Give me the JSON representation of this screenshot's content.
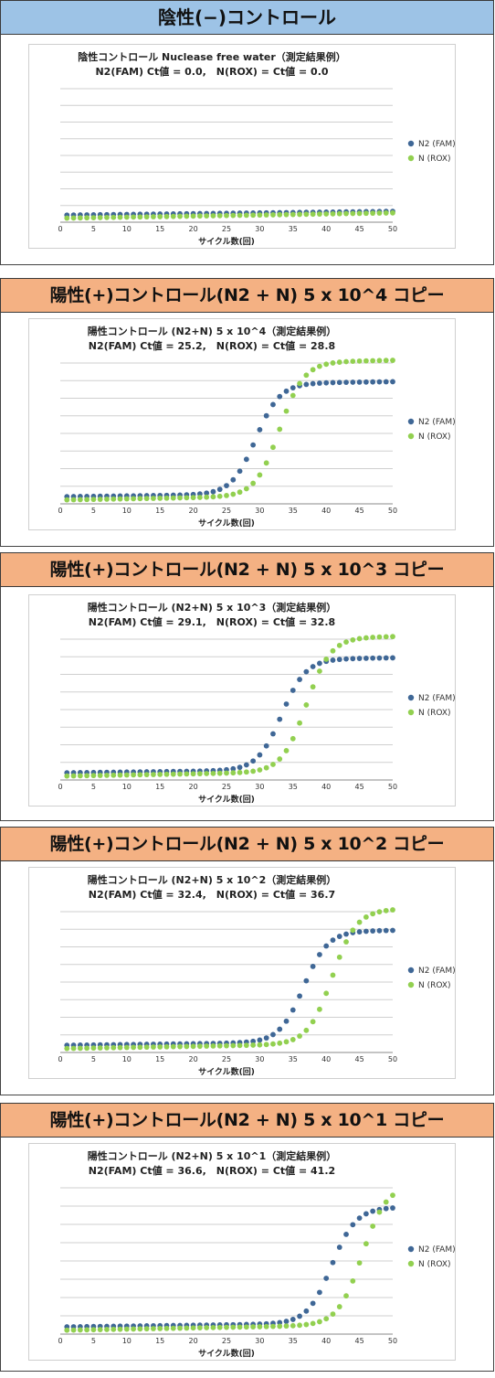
{
  "colors": {
    "fam": "#3f6796",
    "rox": "#92d050",
    "grid": "#cfcfcf",
    "neg_header": "#9dc3e6",
    "pos_header": "#f4b183"
  },
  "panels": [
    {
      "header": "陰性(−)コントロール",
      "title1": "陰性コントロール Nuclease free water（測定結果例）",
      "title2": "N2(FAM) Ct値 = 0.0,　N(ROX) = Ct値 = 0.0"
    },
    {
      "header": "陽性(+)コントロール(N2 + N) 5 x 10^4 コピー",
      "title1": "陽性コントロール (N2+N)  5 x 10^4（測定結果例）",
      "title2": "N2(FAM) Ct値 = 25.2,　N(ROX) = Ct値 = 28.8"
    },
    {
      "header": "陽性(+)コントロール(N2 + N) 5 x 10^3 コピー",
      "title1": "陽性コントロール (N2+N)  5 x 10^3（測定結果例）",
      "title2": "N2(FAM) Ct値 = 29.1,　N(ROX) = Ct値 = 32.8"
    },
    {
      "header": "陽性(+)コントロール(N2 + N) 5 x 10^2 コピー",
      "title1": "陽性コントロール (N2+N)  5 x 10^2（測定結果例）",
      "title2": "N2(FAM) Ct値 = 32.4,　N(ROX) = Ct値 = 36.7"
    },
    {
      "header": "陽性(+)コントロール(N2 + N) 5 x 10^1 コピー",
      "title1": "陽性コントロール (N2+N)  5 x 10^1（測定結果例）",
      "title2": "N2(FAM) Ct値 = 36.6,　N(ROX) = Ct値 = 41.2"
    }
  ],
  "chart_data": [
    {
      "type": "scatter",
      "xlabel": "サイクル数(回)",
      "xlim": [
        0,
        50
      ],
      "x_ticks": [
        0,
        5,
        10,
        15,
        20,
        25,
        30,
        35,
        40,
        45,
        50
      ],
      "grid": true,
      "legend_position": "right",
      "series": [
        {
          "name": "N2 (FAM)",
          "ct": 0.0,
          "plateau": 0.0
        },
        {
          "name": "N (ROX)",
          "ct": 0.0,
          "plateau": 0.0
        }
      ]
    },
    {
      "type": "scatter",
      "xlabel": "サイクル数(回)",
      "xlim": [
        0,
        50
      ],
      "x_ticks": [
        0,
        5,
        10,
        15,
        20,
        25,
        30,
        35,
        40,
        45,
        50
      ],
      "grid": true,
      "legend_position": "right",
      "series": [
        {
          "name": "N2 (FAM)",
          "ct": 25.2,
          "plateau": 0.82
        },
        {
          "name": "N (ROX)",
          "ct": 28.8,
          "plateau": 0.99
        }
      ]
    },
    {
      "type": "scatter",
      "xlabel": "サイクル数(回)",
      "xlim": [
        0,
        50
      ],
      "x_ticks": [
        0,
        5,
        10,
        15,
        20,
        25,
        30,
        35,
        40,
        45,
        50
      ],
      "grid": true,
      "legend_position": "right",
      "series": [
        {
          "name": "N2 (FAM)",
          "ct": 29.1,
          "plateau": 0.82
        },
        {
          "name": "N (ROX)",
          "ct": 32.8,
          "plateau": 0.99
        }
      ]
    },
    {
      "type": "scatter",
      "xlabel": "サイクル数(回)",
      "xlim": [
        0,
        50
      ],
      "x_ticks": [
        0,
        5,
        10,
        15,
        20,
        25,
        30,
        35,
        40,
        45,
        50
      ],
      "grid": true,
      "legend_position": "right",
      "series": [
        {
          "name": "N2 (FAM)",
          "ct": 32.4,
          "plateau": 0.82
        },
        {
          "name": "N (ROX)",
          "ct": 36.7,
          "plateau": 0.99
        }
      ]
    },
    {
      "type": "scatter",
      "xlabel": "サイクル数(回)",
      "xlim": [
        0,
        50
      ],
      "x_ticks": [
        0,
        5,
        10,
        15,
        20,
        25,
        30,
        35,
        40,
        45,
        50
      ],
      "grid": true,
      "legend_position": "right",
      "series": [
        {
          "name": "N2 (FAM)",
          "ct": 36.6,
          "plateau": 0.82
        },
        {
          "name": "N (ROX)",
          "ct": 41.2,
          "plateau": 0.99
        }
      ]
    }
  ]
}
